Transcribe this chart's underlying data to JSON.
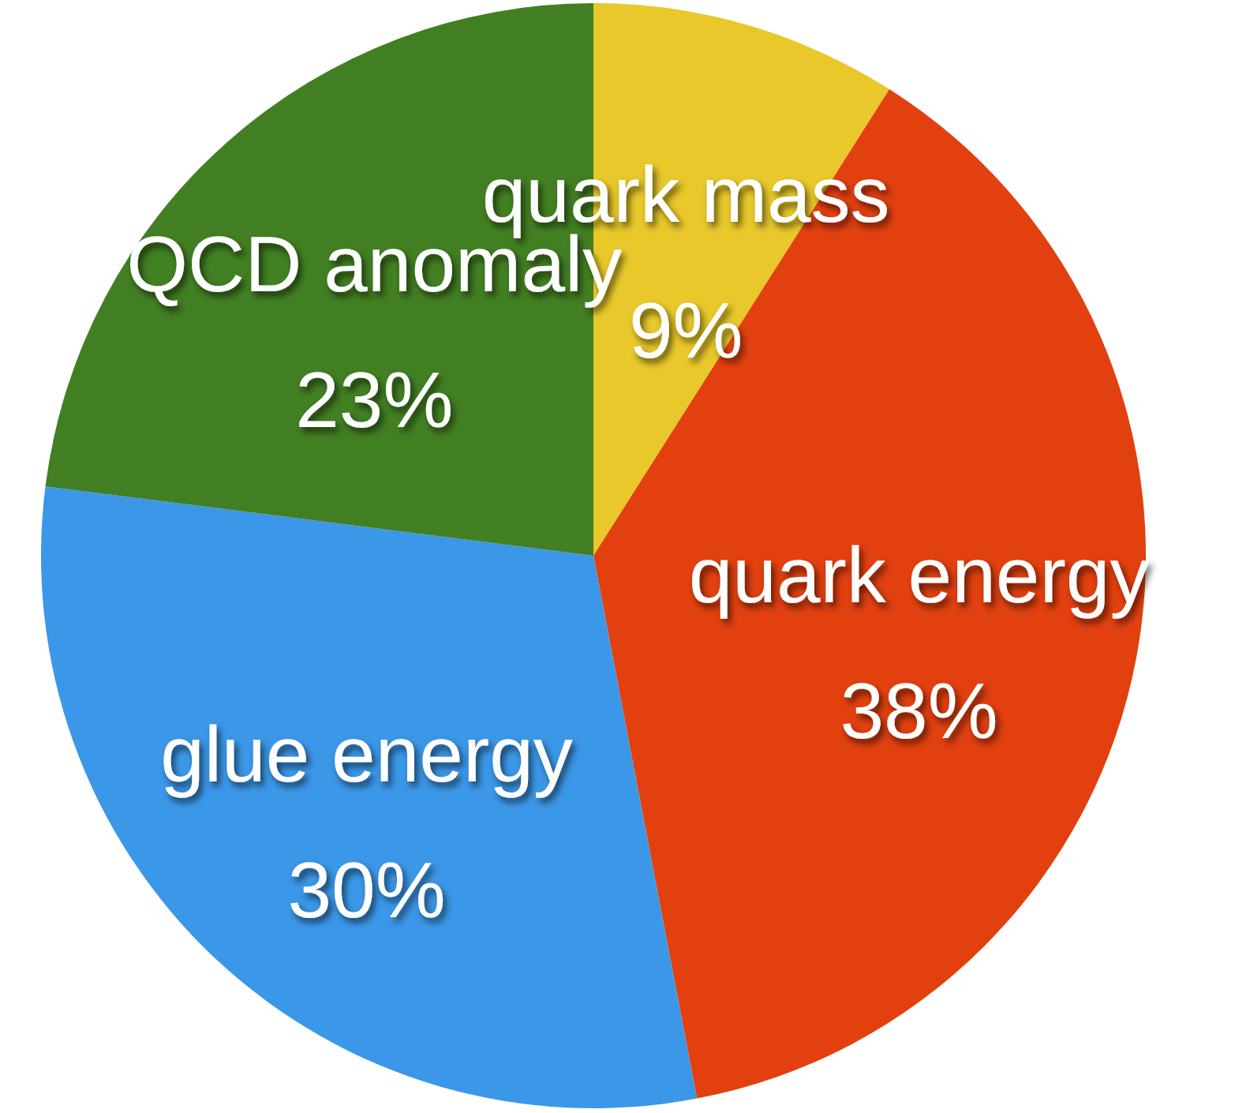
{
  "chart_data": {
    "type": "pie",
    "categories": [
      "quark mass",
      "quark energy",
      "glue energy",
      "QCD anomaly"
    ],
    "values": [
      9,
      38,
      30,
      23
    ],
    "colors": [
      "#e8c82a",
      "#e2400f",
      "#3b97e8",
      "#427f22"
    ],
    "value_labels": [
      "9%",
      "38%",
      "30%",
      "23%"
    ]
  }
}
